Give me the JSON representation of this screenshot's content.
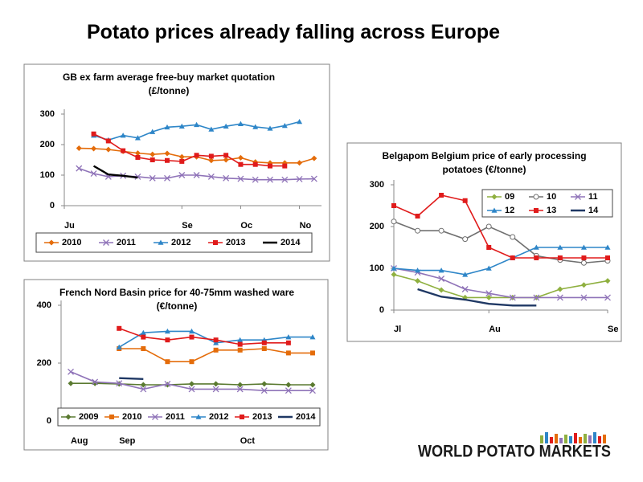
{
  "title": "Potato prices already falling across Europe",
  "logo": "WORLD POTATO MARKETS",
  "chart_data": [
    {
      "type": "line",
      "title": "GB ex farm average free-buy market quotation (£/tonne)",
      "x": [
        1,
        2,
        3,
        4,
        5,
        6,
        7,
        8,
        9,
        10,
        11,
        12,
        13,
        14,
        15,
        16,
        17
      ],
      "xlim": [
        0,
        17.5
      ],
      "xticks": [
        {
          "value": 0,
          "label": "Ju"
        },
        {
          "value": 8,
          "label": "Se"
        },
        {
          "value": 12,
          "label": "Oc"
        },
        {
          "value": 16,
          "label": "No"
        }
      ],
      "ylim": [
        0,
        300
      ],
      "yticks": [
        0,
        100,
        200,
        300
      ],
      "grid": false,
      "legend": "bottom",
      "series": [
        {
          "name": "2010",
          "color": "#e46c0a",
          "marker": "diamond",
          "values": [
            188,
            187,
            184,
            178,
            172,
            168,
            171,
            160,
            160,
            148,
            150,
            157,
            143,
            140,
            140,
            140,
            155
          ]
        },
        {
          "name": "2011",
          "color": "#8f73b8",
          "marker": "x",
          "values": [
            122,
            105,
            95,
            98,
            95,
            90,
            90,
            100,
            100,
            95,
            90,
            88,
            85,
            85,
            85,
            87,
            88
          ]
        },
        {
          "name": "2012",
          "color": "#2e86c8",
          "marker": "triangle",
          "values": [
            null,
            230,
            215,
            230,
            222,
            242,
            257,
            260,
            265,
            250,
            260,
            268,
            258,
            253,
            262,
            275,
            null
          ]
        },
        {
          "name": "2013",
          "color": "#e01b1b",
          "marker": "square",
          "values": [
            null,
            235,
            212,
            180,
            158,
            150,
            148,
            145,
            165,
            162,
            165,
            135,
            135,
            130,
            130,
            null,
            null
          ]
        },
        {
          "name": "2014",
          "color": "#000000",
          "marker": "none",
          "values": [
            null,
            130,
            102,
            98,
            92,
            null,
            null,
            null,
            null,
            null,
            null,
            null,
            null,
            null,
            null,
            null,
            null
          ]
        }
      ]
    },
    {
      "type": "line",
      "title": "Belgapom Belgium price of early processing potatoes (€/tonne)",
      "x": [
        0,
        1,
        2,
        3,
        4,
        5,
        6,
        7,
        8,
        9
      ],
      "xlim": [
        0,
        9
      ],
      "xticks": [
        {
          "value": 0,
          "label": "Jl"
        },
        {
          "value": 4,
          "label": "Au"
        },
        {
          "value": 9,
          "label": "Se"
        }
      ],
      "ylim": [
        0,
        300
      ],
      "yticks": [
        0,
        100,
        200,
        300
      ],
      "grid": false,
      "legend": "upper right",
      "series": [
        {
          "name": "09",
          "color": "#8fb040",
          "marker": "diamond",
          "values": [
            85,
            70,
            48,
            30,
            30,
            30,
            30,
            50,
            60,
            70
          ]
        },
        {
          "name": "10",
          "color": "#707070",
          "marker": "circle",
          "values": [
            212,
            190,
            190,
            170,
            200,
            175,
            130,
            120,
            113,
            118
          ]
        },
        {
          "name": "11",
          "color": "#8f73b8",
          "marker": "x",
          "values": [
            100,
            90,
            75,
            50,
            40,
            30,
            30,
            30,
            30,
            30
          ]
        },
        {
          "name": "12",
          "color": "#2e86c8",
          "marker": "triangle",
          "values": [
            100,
            95,
            95,
            85,
            100,
            125,
            150,
            150,
            150,
            150
          ]
        },
        {
          "name": "13",
          "color": "#e01b1b",
          "marker": "square",
          "values": [
            250,
            225,
            275,
            262,
            150,
            125,
            125,
            125,
            125,
            125
          ]
        },
        {
          "name": "14",
          "color": "#1f3864",
          "marker": "none",
          "values": [
            null,
            50,
            32,
            25,
            15,
            11,
            11,
            null,
            null,
            null
          ]
        }
      ]
    },
    {
      "type": "line",
      "title": "French Nord Basin price for 40-75mm washed ware (€/tonne)",
      "x": [
        0,
        1,
        2,
        3,
        4,
        5,
        6,
        7,
        8,
        9,
        10
      ],
      "xlim": [
        -0.4,
        10.3
      ],
      "xticks": [
        {
          "value": 0,
          "label": "Aug"
        },
        {
          "value": 2,
          "label": "Sep"
        },
        {
          "value": 7,
          "label": "Oct"
        }
      ],
      "ylim": [
        0,
        400
      ],
      "yticks": [
        0,
        200,
        400
      ],
      "grid": false,
      "legend": "bottom",
      "series": [
        {
          "name": "2009",
          "color": "#5a7a30",
          "marker": "diamond",
          "values": [
            130,
            130,
            128,
            125,
            125,
            128,
            128,
            125,
            128,
            125,
            125
          ]
        },
        {
          "name": "2010",
          "color": "#e46c0a",
          "marker": "square",
          "values": [
            null,
            null,
            250,
            250,
            205,
            205,
            245,
            245,
            250,
            235,
            235
          ]
        },
        {
          "name": "2011",
          "color": "#8f73b8",
          "marker": "x",
          "values": [
            170,
            135,
            130,
            110,
            128,
            110,
            110,
            110,
            105,
            105,
            105
          ]
        },
        {
          "name": "2012",
          "color": "#2e86c8",
          "marker": "triangle",
          "values": [
            null,
            null,
            255,
            305,
            310,
            310,
            270,
            280,
            280,
            290,
            290
          ]
        },
        {
          "name": "2013",
          "color": "#e01b1b",
          "marker": "square",
          "values": [
            null,
            null,
            320,
            290,
            280,
            290,
            280,
            265,
            270,
            270,
            null
          ]
        },
        {
          "name": "2014",
          "color": "#1f3864",
          "marker": "none",
          "values": [
            null,
            null,
            148,
            145,
            null,
            null,
            null,
            null,
            null,
            null,
            null
          ]
        }
      ]
    }
  ]
}
